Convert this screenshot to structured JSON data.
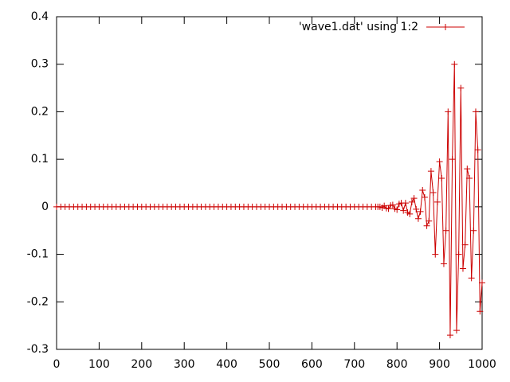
{
  "chart_data": {
    "type": "line",
    "x": [
      0,
      10,
      20,
      30,
      40,
      50,
      60,
      70,
      80,
      90,
      100,
      110,
      120,
      130,
      140,
      150,
      160,
      170,
      180,
      190,
      200,
      210,
      220,
      230,
      240,
      250,
      260,
      270,
      280,
      290,
      300,
      310,
      320,
      330,
      340,
      350,
      360,
      370,
      380,
      390,
      400,
      410,
      420,
      430,
      440,
      450,
      460,
      470,
      480,
      490,
      500,
      510,
      520,
      530,
      540,
      550,
      560,
      570,
      580,
      590,
      600,
      610,
      620,
      630,
      640,
      650,
      660,
      670,
      680,
      690,
      700,
      710,
      720,
      730,
      740,
      750,
      755,
      760,
      765,
      770,
      775,
      780,
      785,
      790,
      795,
      800,
      805,
      810,
      815,
      820,
      825,
      830,
      835,
      840,
      845,
      850,
      855,
      860,
      865,
      870,
      875,
      880,
      885,
      890,
      895,
      900,
      905,
      910,
      915,
      920,
      925,
      930,
      935,
      940,
      945,
      950,
      955,
      960,
      965,
      970,
      975,
      980,
      985,
      990,
      995,
      1000
    ],
    "series": [
      {
        "name": "'wave1.dat' using 1:2",
        "color": "#cc0000",
        "values": [
          0,
          0,
          0,
          0,
          0,
          0,
          0,
          0,
          0,
          0,
          0,
          0,
          0,
          0,
          0,
          0,
          0,
          0,
          0,
          0,
          0,
          0,
          0,
          0,
          0,
          0,
          0,
          0,
          0,
          0,
          0,
          0,
          0,
          0,
          0,
          0,
          0,
          0,
          0,
          0,
          0,
          0,
          0,
          0,
          0,
          0,
          0,
          0,
          0,
          0,
          0,
          0,
          0,
          0,
          0,
          0,
          0,
          0,
          0,
          0,
          0,
          0,
          0,
          0,
          0,
          0,
          0,
          0,
          0,
          0,
          0,
          0,
          0,
          0,
          0,
          0,
          0,
          0,
          -0.002,
          0.002,
          -0.003,
          -0.004,
          0.003,
          0.004,
          -0.004,
          -0.006,
          0.006,
          0.008,
          -0.008,
          0.008,
          -0.012,
          -0.015,
          0.01,
          0.018,
          -0.005,
          -0.025,
          -0.01,
          0.035,
          0.02,
          -0.04,
          -0.03,
          0.075,
          0.03,
          -0.1,
          0.01,
          0.095,
          0.06,
          -0.12,
          -0.05,
          0.2,
          -0.27,
          0.1,
          0.3,
          -0.26,
          -0.1,
          0.25,
          -0.13,
          -0.08,
          0.08,
          0.06,
          -0.15,
          -0.05,
          0.2,
          0.12,
          -0.22,
          -0.16
        ]
      }
    ],
    "xlim": [
      0,
      1000
    ],
    "xticks": [
      0,
      100,
      200,
      300,
      400,
      500,
      600,
      700,
      800,
      900,
      1000
    ],
    "ylim": [
      -0.3,
      0.4
    ],
    "yticks": [
      -0.3,
      -0.2,
      -0.1,
      0,
      0.1,
      0.2,
      0.3,
      0.4
    ],
    "legend": "top right",
    "grid": false
  }
}
